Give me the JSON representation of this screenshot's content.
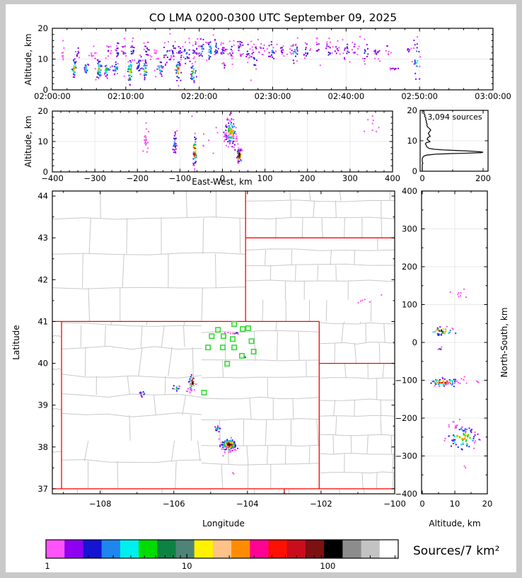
{
  "title": "CO LMA 0200-0300 UTC September 09, 2025",
  "colors": {
    "figure_bg": "#ffffff",
    "outer_border": "#c9c9c9",
    "frame": "#000000",
    "grid": "#e9e9e9",
    "county_line": "#c9c9c9",
    "state_line": "#fe0000",
    "station": "#33dd33",
    "histogram_line": "#111111",
    "point_palette": [
      "#ff50f0",
      "#9000f0",
      "#2020dd",
      "#1e86ee",
      "#00e0e0",
      "#00d000",
      "#ffe000",
      "#ff9000",
      "#ff2010",
      "#c00000",
      "#181818"
    ]
  },
  "chart_data": [
    {
      "id": "time_height",
      "type": "scatter",
      "ylabel": "Altitude, km",
      "ylim": [
        0,
        20
      ],
      "yticks": [
        0,
        10,
        20
      ],
      "xlim_minutes": [
        0,
        60
      ],
      "xticks_minutes": [
        0,
        10,
        20,
        30,
        40,
        50,
        60
      ],
      "xtick_labels": [
        "02:00:00",
        "02:10:00",
        "02:20:00",
        "02:30:00",
        "02:40:00",
        "02:50:00",
        "03:00:00"
      ],
      "clusters": [
        [
          1.4,
          12,
          0.15,
          1.6,
          8,
          0
        ],
        [
          3.0,
          7,
          0.15,
          1.4,
          34,
          6
        ],
        [
          3.4,
          12.5,
          0.2,
          1.5,
          9,
          1
        ],
        [
          4.6,
          7,
          0.15,
          1.2,
          24,
          4
        ],
        [
          5.6,
          11,
          0.3,
          2.4,
          12,
          0
        ],
        [
          6.4,
          6.5,
          0.15,
          1.5,
          34,
          6
        ],
        [
          7.4,
          6.5,
          0.18,
          1.2,
          26,
          5
        ],
        [
          7.7,
          13,
          0.2,
          1.5,
          10,
          1
        ],
        [
          8.6,
          7,
          0.15,
          1.1,
          22,
          4
        ],
        [
          8.9,
          12.5,
          0.15,
          1.5,
          12,
          2
        ],
        [
          9.8,
          13.5,
          0.2,
          1.6,
          11,
          1
        ],
        [
          10.6,
          6,
          0.18,
          1.9,
          40,
          7
        ],
        [
          10.9,
          12.5,
          0.2,
          1.5,
          14,
          2
        ],
        [
          11.9,
          8,
          0.25,
          2.0,
          16,
          3
        ],
        [
          12.6,
          6.5,
          0.15,
          1.6,
          30,
          6
        ],
        [
          12.9,
          13,
          0.2,
          1.5,
          13,
          2
        ],
        [
          13.9,
          12.5,
          0.3,
          1.8,
          9,
          0
        ],
        [
          14.7,
          7,
          0.15,
          1.2,
          22,
          5
        ],
        [
          15.6,
          11.5,
          0.25,
          2.0,
          18,
          3
        ],
        [
          16.4,
          13,
          0.2,
          1.6,
          15,
          2
        ],
        [
          17.1,
          6.5,
          0.15,
          1.7,
          38,
          7
        ],
        [
          17.4,
          12.5,
          0.2,
          1.5,
          13,
          2
        ],
        [
          18.3,
          12,
          0.25,
          1.9,
          18,
          3
        ],
        [
          19.2,
          5.5,
          0.2,
          1.8,
          28,
          6
        ],
        [
          19.5,
          12.5,
          0.2,
          1.5,
          11,
          2
        ],
        [
          20.4,
          12.5,
          0.25,
          1.8,
          16,
          3
        ],
        [
          21.4,
          13,
          0.2,
          1.7,
          20,
          4
        ],
        [
          22.3,
          13.5,
          0.2,
          1.5,
          15,
          3
        ],
        [
          23.3,
          12.5,
          0.2,
          1.5,
          13,
          2
        ],
        [
          23.5,
          7.5,
          0.15,
          0.9,
          7,
          1
        ],
        [
          24.4,
          13,
          0.2,
          1.5,
          11,
          2
        ],
        [
          25.6,
          14,
          0.25,
          1.9,
          15,
          2
        ],
        [
          26.6,
          12.5,
          0.2,
          1.5,
          11,
          2
        ],
        [
          27.5,
          10.5,
          0.25,
          2.6,
          15,
          2
        ],
        [
          28.6,
          13,
          0.2,
          1.2,
          9,
          1
        ],
        [
          29.9,
          12.5,
          0.25,
          1.8,
          15,
          3
        ],
        [
          31.2,
          13,
          0.2,
          1.3,
          9,
          1
        ],
        [
          33.0,
          12.5,
          0.3,
          1.9,
          19,
          3
        ],
        [
          34.6,
          12.5,
          0.25,
          1.6,
          13,
          2
        ],
        [
          36.1,
          13.5,
          0.25,
          1.5,
          9,
          1
        ],
        [
          37.6,
          12.5,
          0.25,
          1.6,
          13,
          2
        ],
        [
          38.7,
          13,
          0.2,
          1.2,
          9,
          1
        ],
        [
          40.1,
          12.5,
          0.25,
          1.6,
          13,
          2
        ],
        [
          41.2,
          13.5,
          0.2,
          1.5,
          9,
          1
        ],
        [
          42.7,
          12,
          0.25,
          1.9,
          13,
          2
        ],
        [
          44.2,
          13,
          0.25,
          1.5,
          11,
          2
        ],
        [
          45.7,
          14,
          0.2,
          1.6,
          8,
          1
        ],
        [
          46.6,
          6.8,
          0.5,
          0.25,
          8,
          1
        ],
        [
          48.6,
          13,
          0.2,
          1.1,
          6,
          1
        ],
        [
          49.6,
          10,
          0.25,
          3.4,
          24,
          4
        ],
        [
          25,
          14,
          9,
          2.3,
          55,
          0
        ],
        [
          8,
          4.5,
          4,
          1.1,
          9,
          0
        ]
      ]
    },
    {
      "id": "ew_height",
      "type": "scatter",
      "xlabel": "East-West, km",
      "ylabel": "Altitude, km",
      "xlim": [
        -400,
        400
      ],
      "xticks": [
        -400,
        -300,
        -200,
        -100,
        0,
        100,
        200,
        300,
        400
      ],
      "ylim": [
        0,
        20
      ],
      "yticks": [
        0,
        10,
        20
      ],
      "clusters": [
        [
          -180,
          11,
          4,
          2.3,
          18,
          0
        ],
        [
          -112,
          9.5,
          2.5,
          1.9,
          28,
          3
        ],
        [
          -65,
          6.5,
          1.8,
          2.3,
          60,
          9
        ],
        [
          20,
          13,
          6.5,
          2.0,
          95,
          7
        ],
        [
          22,
          10,
          10,
          1.6,
          25,
          0
        ],
        [
          40,
          5.5,
          2.3,
          1.2,
          42,
          10
        ],
        [
          38,
          7,
          6,
          0.35,
          10,
          2
        ],
        [
          350,
          15,
          10,
          2.2,
          8,
          0
        ],
        [
          18,
          18.5,
          3,
          0.9,
          6,
          1
        ],
        [
          -40,
          12,
          40,
          3,
          10,
          0
        ]
      ]
    },
    {
      "id": "altitude_histogram",
      "type": "line",
      "annotation": "3,094 sources",
      "xlim": [
        0,
        215
      ],
      "xticks": [
        0,
        200
      ],
      "minor_xticks": [
        100
      ],
      "ylim": [
        0,
        20
      ],
      "yticks": [
        0,
        10,
        20
      ],
      "points_count_alt": [
        [
          2,
          20
        ],
        [
          6,
          19.5
        ],
        [
          5,
          19
        ],
        [
          9,
          18.5
        ],
        [
          8,
          18
        ],
        [
          12,
          17.5
        ],
        [
          11,
          17
        ],
        [
          14,
          16.5
        ],
        [
          13,
          16
        ],
        [
          16,
          15.5
        ],
        [
          15,
          15
        ],
        [
          18,
          14.5
        ],
        [
          24,
          14
        ],
        [
          28,
          13.5
        ],
        [
          24,
          13
        ],
        [
          20,
          12.5
        ],
        [
          22,
          12
        ],
        [
          26,
          11.5
        ],
        [
          18,
          11
        ],
        [
          16,
          10.5
        ],
        [
          22,
          10
        ],
        [
          25,
          9.7
        ],
        [
          14,
          9.4
        ],
        [
          10,
          9
        ],
        [
          13,
          8.5
        ],
        [
          15,
          8
        ],
        [
          22,
          7.5
        ],
        [
          40,
          7.2
        ],
        [
          70,
          7
        ],
        [
          115,
          6.8
        ],
        [
          160,
          6.6
        ],
        [
          190,
          6.4
        ],
        [
          200,
          6.25
        ],
        [
          193,
          6.1
        ],
        [
          155,
          5.95
        ],
        [
          95,
          5.8
        ],
        [
          45,
          5.6
        ],
        [
          15,
          5.3
        ],
        [
          6,
          5
        ],
        [
          3,
          4.7
        ],
        [
          1,
          4.4
        ],
        [
          0,
          4
        ],
        [
          0,
          3
        ],
        [
          2,
          2.6
        ],
        [
          0,
          2.3
        ],
        [
          0,
          0
        ]
      ]
    },
    {
      "id": "map",
      "type": "scatter",
      "xlabel": "Longitude",
      "ylabel": "Latitude",
      "xlim": [
        -109.3,
        -100.0
      ],
      "ylim": [
        36.88,
        44.12
      ],
      "xticks": [
        -108,
        -106,
        -104,
        -102,
        -100
      ],
      "yticks": [
        37,
        38,
        39,
        40,
        41,
        42,
        43,
        44
      ],
      "stations": [
        [
          -104.36,
          40.94
        ],
        [
          -104.13,
          40.82
        ],
        [
          -103.98,
          40.84
        ],
        [
          -104.8,
          40.8
        ],
        [
          -104.97,
          40.65
        ],
        [
          -104.65,
          40.65
        ],
        [
          -104.4,
          40.58
        ],
        [
          -103.89,
          40.53
        ],
        [
          -105.07,
          40.38
        ],
        [
          -104.67,
          40.38
        ],
        [
          -104.36,
          40.38
        ],
        [
          -103.83,
          40.28
        ],
        [
          -104.15,
          40.18
        ],
        [
          -104.55,
          39.99
        ],
        [
          -105.18,
          39.3
        ]
      ],
      "clusters": [
        [
          -106.85,
          39.27,
          0.05,
          0.035,
          10,
          4
        ],
        [
          -105.95,
          39.4,
          0.05,
          0.04,
          12,
          6
        ],
        [
          -105.5,
          39.53,
          0.035,
          0.1,
          30,
          10
        ],
        [
          -105.57,
          39.36,
          0.05,
          0.05,
          9,
          0
        ],
        [
          -104.8,
          38.43,
          0.035,
          0.03,
          14,
          4
        ],
        [
          -104.5,
          38.05,
          0.1,
          0.065,
          130,
          9
        ],
        [
          -104.48,
          37.92,
          0.09,
          0.04,
          12,
          0
        ],
        [
          -104.38,
          37.37,
          0.02,
          0.015,
          2,
          0
        ],
        [
          -100.85,
          41.52,
          0.12,
          0.04,
          5,
          0
        ],
        [
          -100.37,
          41.64,
          0.02,
          0.015,
          1,
          0
        ],
        [
          -104.3,
          40.72,
          0.05,
          0.012,
          6,
          2
        ],
        [
          -104.55,
          40.72,
          0.03,
          0.012,
          3,
          0
        ],
        [
          -104.08,
          40.15,
          0.03,
          0.02,
          4,
          2
        ]
      ],
      "state_borders": [
        [
          [
            -109.3,
            41
          ],
          [
            -102.05,
            41
          ]
        ],
        [
          [
            -104.05,
            44.12
          ],
          [
            -104.05,
            41
          ]
        ],
        [
          [
            -104.05,
            43
          ],
          [
            -100.0,
            43
          ]
        ],
        [
          [
            -102.05,
            41
          ],
          [
            -102.05,
            37
          ]
        ],
        [
          [
            -109.05,
            41
          ],
          [
            -109.05,
            37
          ]
        ],
        [
          [
            -109.3,
            37
          ],
          [
            -100.0,
            37
          ]
        ],
        [
          [
            -102.05,
            40
          ],
          [
            -100.0,
            40
          ]
        ],
        [
          [
            -103.0,
            37
          ],
          [
            -103.0,
            36.88
          ]
        ]
      ]
    },
    {
      "id": "ns_height",
      "type": "scatter",
      "xlabel": "Altitude, km",
      "ylabel_right": "North-South, km",
      "xlim": [
        0,
        20
      ],
      "xticks": [
        0,
        10,
        20
      ],
      "ylim": [
        -400,
        400
      ],
      "yticks": [
        400,
        300,
        200,
        100,
        0,
        -100,
        -200,
        -300,
        -400
      ],
      "clusters": [
        [
          12,
          132,
          1.6,
          7,
          8,
          0
        ],
        [
          6,
          30,
          1.6,
          5,
          35,
          10
        ],
        [
          6,
          -18,
          0.5,
          3,
          4,
          2
        ],
        [
          6.5,
          -105,
          2.2,
          5,
          60,
          9
        ],
        [
          11.5,
          -110,
          3,
          8,
          15,
          0
        ],
        [
          12.5,
          -252,
          2.2,
          14,
          80,
          7
        ],
        [
          11,
          -222,
          2.5,
          8,
          12,
          0
        ],
        [
          13,
          -330,
          0.3,
          3,
          2,
          0
        ]
      ]
    },
    {
      "id": "colorbar",
      "label": "Sources/7 km²",
      "scale": "log",
      "range": [
        1,
        316
      ],
      "ticks": [
        1,
        10,
        100
      ],
      "minor_ticks": [
        2,
        3,
        4,
        5,
        6,
        7,
        8,
        9,
        20,
        30,
        40,
        50,
        60,
        70,
        80,
        90,
        200,
        300
      ],
      "colors": [
        "#ff54fc",
        "#9000f0",
        "#1414d2",
        "#1e86ee",
        "#00eeee",
        "#00dc00",
        "#0c8243",
        "#4f8378",
        "#fff200",
        "#ffc287",
        "#ff8c00",
        "#ff0492",
        "#fe1002",
        "#ca0c1c",
        "#7c1013",
        "#000000",
        "#8c8c8c",
        "#c3c3c3",
        "#ffffff"
      ]
    }
  ]
}
